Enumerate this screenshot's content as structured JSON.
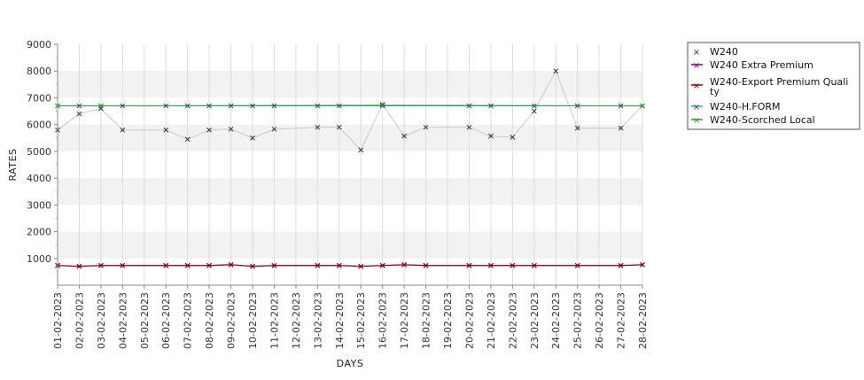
{
  "chart_data": {
    "type": "line",
    "xlabel": "DAYS",
    "ylabel": "RATES",
    "ylim": [
      0,
      9000
    ],
    "yticks": [
      1000,
      2000,
      3000,
      4000,
      5000,
      6000,
      7000,
      8000,
      9000
    ],
    "categories": [
      "01-02-2023",
      "02-02-2023",
      "03-02-2023",
      "04-02-2023",
      "05-02-2023",
      "06-02-2023",
      "07-02-2023",
      "08-02-2023",
      "09-02-2023",
      "10-02-2023",
      "11-02-2023",
      "12-02-2023",
      "13-02-2023",
      "14-02-2023",
      "15-02-2023",
      "16-02-2023",
      "17-02-2023",
      "18-02-2023",
      "19-02-2023",
      "20-02-2023",
      "21-02-2023",
      "22-02-2023",
      "23-02-2023",
      "24-02-2023",
      "25-02-2023",
      "26-02-2023",
      "27-02-2023",
      "28-02-2023"
    ],
    "grid": true,
    "banded_background": true,
    "legend_position": "right",
    "series": [
      {
        "name": "W240",
        "color": "#c8c8c8",
        "marker_color": "#333333",
        "values": [
          5800,
          6400,
          6600,
          5800,
          null,
          5800,
          5450,
          5800,
          5830,
          5500,
          5830,
          null,
          5900,
          5900,
          5050,
          6750,
          5570,
          5900,
          null,
          5900,
          5570,
          5530,
          6500,
          8000,
          5870,
          null,
          5870,
          6700
        ]
      },
      {
        "name": "W240 Extra Premium",
        "color": "#8b008b",
        "marker_color": "#6a006a",
        "values": [
          730,
          700,
          730,
          730,
          null,
          730,
          730,
          730,
          760,
          700,
          730,
          null,
          730,
          730,
          700,
          730,
          760,
          730,
          null,
          730,
          730,
          730,
          730,
          null,
          730,
          null,
          730,
          760
        ]
      },
      {
        "name": "W240-Export Premium Quality",
        "color": "#8b0000",
        "marker_color": "#8b0000",
        "values": [
          740,
          710,
          740,
          740,
          null,
          740,
          740,
          740,
          770,
          710,
          740,
          null,
          740,
          740,
          710,
          740,
          770,
          740,
          null,
          740,
          740,
          740,
          740,
          null,
          740,
          null,
          740,
          770
        ]
      },
      {
        "name": "W240-H.FORM",
        "color": "#2aa0c0",
        "marker_color": "#1f4f6f",
        "values": [
          6700,
          6700,
          6700,
          6700,
          null,
          6700,
          6700,
          6700,
          6700,
          6700,
          6700,
          null,
          6700,
          6700,
          null,
          6700,
          null,
          null,
          null,
          6700,
          6700,
          null,
          6700,
          null,
          6700,
          null,
          6700,
          6700
        ]
      },
      {
        "name": "W240-Scorched Local",
        "color": "#2ca02c",
        "marker_color": "#2ca02c",
        "values": [
          6700,
          null,
          6700,
          null,
          null,
          null,
          null,
          null,
          null,
          null,
          null,
          null,
          null,
          null,
          null,
          6720,
          null,
          null,
          null,
          null,
          null,
          null,
          null,
          null,
          null,
          null,
          null,
          6700
        ]
      }
    ]
  },
  "legend": {
    "items": [
      {
        "label": "W240",
        "color": "#333333"
      },
      {
        "label": "W240 Extra Premium",
        "color": "#8b008b"
      },
      {
        "label_line1": "W240-Export Premium Quali",
        "label_line2": "ty",
        "color": "#8b0000"
      },
      {
        "label": "W240-H.FORM",
        "color": "#1f4f6f"
      },
      {
        "label": "W240-Scorched Local",
        "color": "#2ca02c"
      }
    ]
  }
}
